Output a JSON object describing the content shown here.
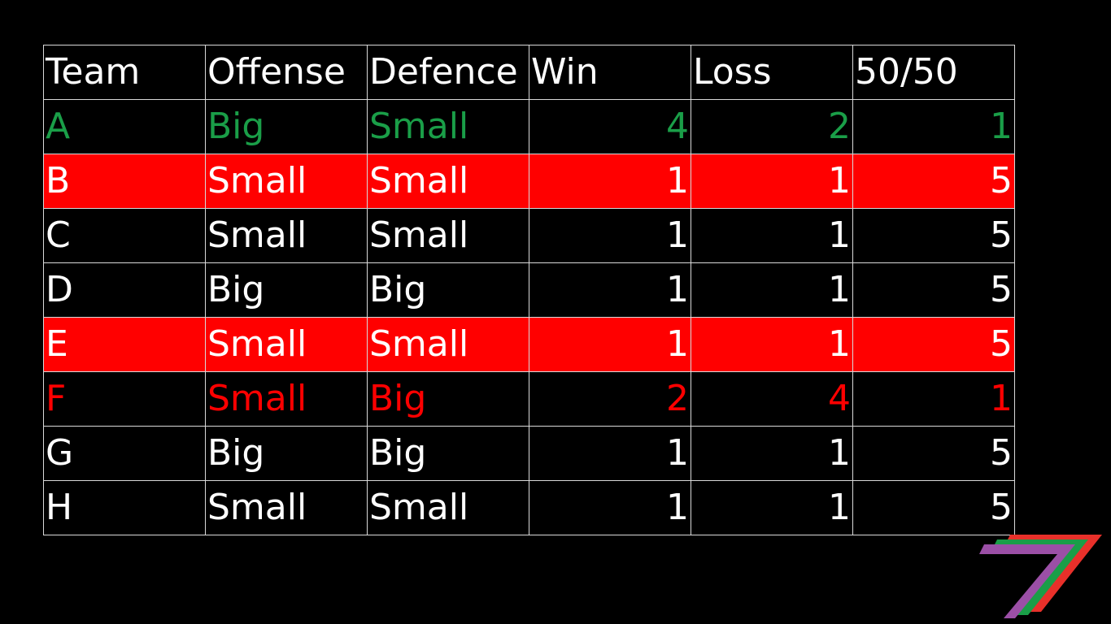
{
  "table": {
    "headers": [
      "Team",
      "Offense",
      "Defence",
      "Win",
      "Loss",
      "50/50"
    ],
    "rows": [
      {
        "cells": [
          "A",
          "Big",
          "Small",
          "4",
          "2",
          "1"
        ],
        "text_color": "#1a9e48",
        "bg_color": "#000000"
      },
      {
        "cells": [
          "B",
          "Small",
          "Small",
          "1",
          "1",
          "5"
        ],
        "text_color": "#ffffff",
        "bg_color": "#ff0000"
      },
      {
        "cells": [
          "C",
          "Small",
          "Small",
          "1",
          "1",
          "5"
        ],
        "text_color": "#ffffff",
        "bg_color": "#000000"
      },
      {
        "cells": [
          "D",
          "Big",
          "Big",
          "1",
          "1",
          "5"
        ],
        "text_color": "#ffffff",
        "bg_color": "#000000"
      },
      {
        "cells": [
          "E",
          "Small",
          "Small",
          "1",
          "1",
          "5"
        ],
        "text_color": "#ffffff",
        "bg_color": "#ff0000"
      },
      {
        "cells": [
          "F",
          "Small",
          "Big",
          "2",
          "4",
          "1"
        ],
        "text_color": "#ff0000",
        "bg_color": "#000000"
      },
      {
        "cells": [
          "G",
          "Big",
          "Big",
          "1",
          "1",
          "5"
        ],
        "text_color": "#ffffff",
        "bg_color": "#000000"
      },
      {
        "cells": [
          "H",
          "Small",
          "Small",
          "1",
          "1",
          "5"
        ],
        "text_color": "#ffffff",
        "bg_color": "#000000"
      }
    ]
  },
  "colors": {
    "background": "#000000",
    "header_text": "#ffffff",
    "grid_line": "#d9d9d9",
    "logo_red": "#e8302a",
    "logo_green": "#1a9e48",
    "logo_purple": "#9b4fa6"
  },
  "logo": {
    "icon": "stripe-seven-logo-icon"
  }
}
